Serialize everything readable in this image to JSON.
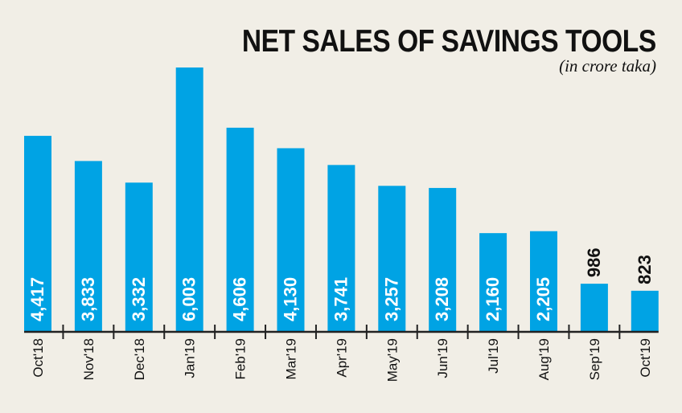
{
  "chart_data": {
    "type": "bar",
    "title": "NET SALES OF SAVINGS TOOLS",
    "subtitle": "(in crore taka)",
    "xlabel": "",
    "ylabel": "",
    "categories": [
      "Oct'18",
      "Nov'18",
      "Dec'18",
      "Jan'19",
      "Feb'19",
      "Mar'19",
      "Apr'19",
      "May'19",
      "Jun'19",
      "Jul'19",
      "Aug'19",
      "Sep'19",
      "Oct'19"
    ],
    "values": [
      4417,
      3833,
      3332,
      6003,
      4606,
      4130,
      3741,
      3257,
      3208,
      2160,
      2205,
      986,
      823
    ],
    "labels": [
      "4,417",
      "3,833",
      "3,332",
      "6,003",
      "4,606",
      "4,130",
      "3,741",
      "3,257",
      "3,208",
      "2,160",
      "2,205",
      "986",
      "823"
    ],
    "ylim": [
      0,
      6003
    ],
    "grid": false,
    "bar_color": "#00a3e4",
    "label_color_inside": "#ffffff",
    "label_color_outside": "#111111",
    "background": "#f1eee6"
  }
}
